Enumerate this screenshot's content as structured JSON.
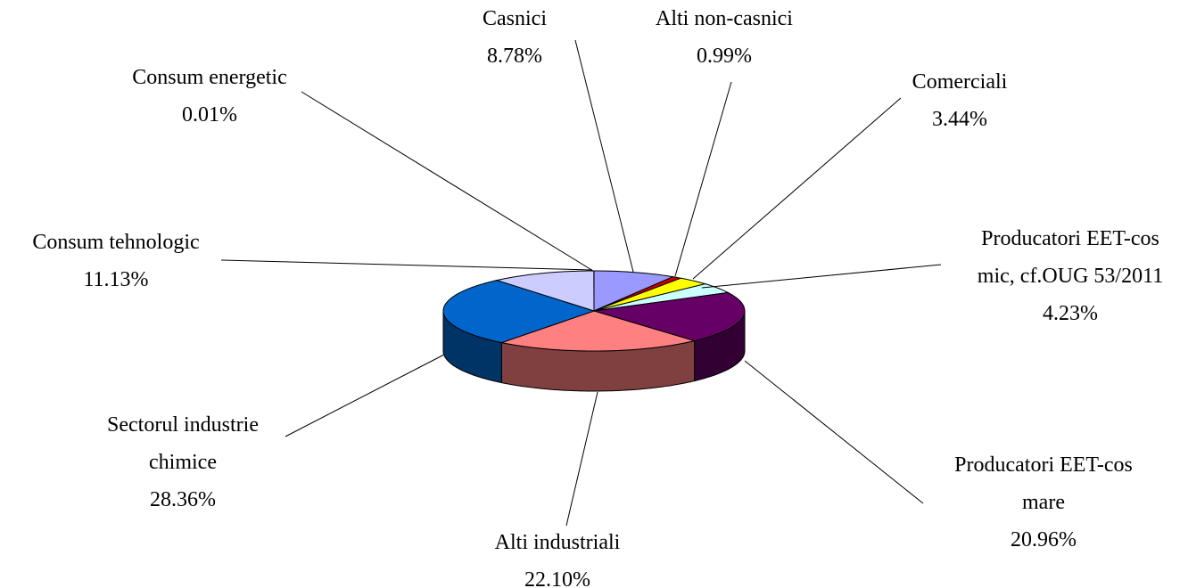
{
  "chart_data": {
    "type": "pie3d",
    "categories": [
      "Casnici",
      "Alti non-casnici",
      "Comerciali",
      "Producatori EET-cos\nmic, cf.OUG 53/2011",
      "Producatori EET-cos\nmare",
      "Alti industriali",
      "Sectorul industrie\nchimice",
      "Consum tehnologic",
      "Consum energetic"
    ],
    "values": [
      8.78,
      0.99,
      3.44,
      4.23,
      20.96,
      22.1,
      28.36,
      11.13,
      0.01
    ],
    "value_labels": [
      "8.78%",
      "0.99%",
      "3.44%",
      "4.23%",
      "20.96%",
      "22.10%",
      "28.36%",
      "11.13%",
      "0.01%"
    ],
    "colors": [
      "#9999ff",
      "#cc0000",
      "#ffff00",
      "#ccffff",
      "#660066",
      "#ff8080",
      "#0066cc",
      "#ccccff",
      "#993366"
    ]
  }
}
